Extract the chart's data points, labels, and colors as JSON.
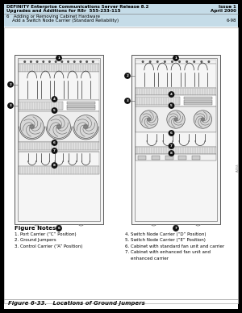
{
  "bg_color": "#000000",
  "page_bg": "#ffffff",
  "header_bg": "#c5dce8",
  "header_line1": "DEFINITY Enterprise Communications Server Release 8.2",
  "header_line1_right": "Issue 1",
  "header_line2": "Upgrades and Additions for R8r  555-233-115",
  "header_line2_right": "April 2000",
  "header_line3": "6   Adding or Removing Cabinet Hardware",
  "header_line4": "    Add a Switch Node Carrier (Standard Reliability)",
  "header_line4_right": "6-98",
  "figure_notes_title": "Figure Notes",
  "notes_left": [
    "1. Port Carrier (“C” Position)",
    "2. Ground Jumpers",
    "3. Control Carrier (“A” Position)"
  ],
  "notes_right": [
    "4. Switch Node Carrier (“D” Position)",
    "5. Switch Node Carrier (“E” Position)",
    "6. Cabinet with standard fan unit and carrier",
    "7. Cabinet with enhanced fan unit and",
    "    enhanced carrier"
  ],
  "figure_caption": "Figure 6-33.   Locations of Ground Jumpers",
  "cc": "#555555",
  "black": "#111111",
  "hatch_color": "#aaaaaa",
  "fan_color": "#bbbbbb"
}
